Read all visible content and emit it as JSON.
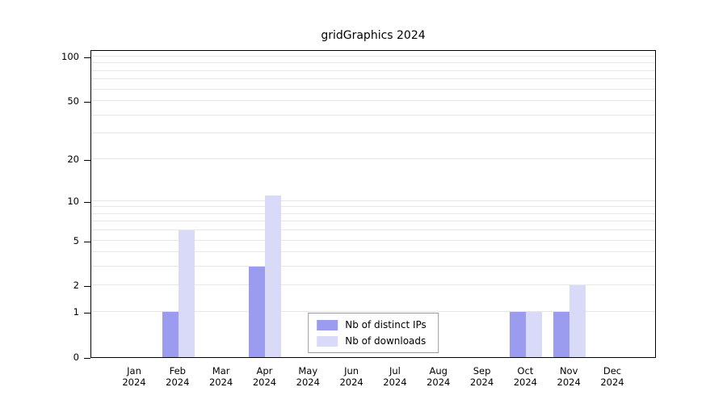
{
  "chart_data": {
    "type": "bar",
    "title": "gridGraphics 2024",
    "categories": [
      "Jan",
      "Feb",
      "Mar",
      "Apr",
      "May",
      "Jun",
      "Jul",
      "Aug",
      "Sep",
      "Oct",
      "Nov",
      "Dec"
    ],
    "category_year": "2024",
    "series": [
      {
        "name": "Nb of distinct IPs",
        "color": "#9b9bef",
        "values": [
          0,
          1,
          0,
          3,
          0,
          0,
          0,
          0,
          0,
          1,
          1,
          0
        ]
      },
      {
        "name": "Nb of downloads",
        "color": "#d9d9f8",
        "values": [
          0,
          6,
          0,
          11,
          0,
          0,
          0,
          0,
          0,
          1,
          2,
          0
        ]
      }
    ],
    "yticks": [
      0,
      1,
      2,
      5,
      10,
      20,
      50,
      100
    ],
    "minor_gridlines": [
      1,
      2,
      3,
      4,
      5,
      6,
      7,
      8,
      9,
      10,
      20,
      30,
      40,
      50,
      60,
      70,
      80,
      90,
      100
    ],
    "scale": "log10(x+1)",
    "ylim": [
      0,
      112
    ],
    "xlabel": "",
    "ylabel": "",
    "grid": true,
    "legend_position": "bottom-center"
  }
}
